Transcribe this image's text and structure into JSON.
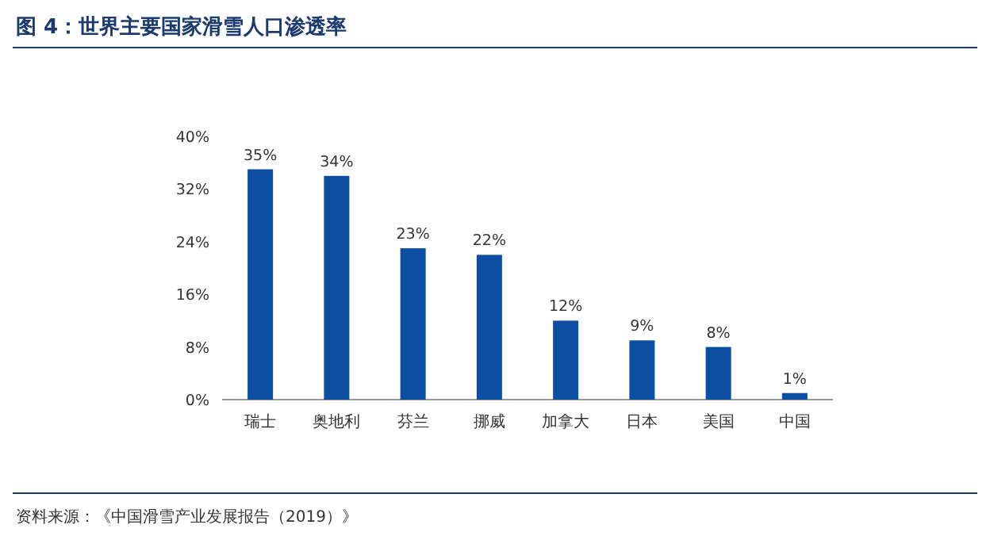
{
  "chart_data": {
    "type": "bar",
    "title": "图 4：世界主要国家滑雪人口渗透率",
    "categories": [
      "瑞士",
      "奥地利",
      "芬兰",
      "挪威",
      "加拿大",
      "日本",
      "美国",
      "中国"
    ],
    "values": [
      35,
      34,
      23,
      22,
      12,
      9,
      8,
      1
    ],
    "color": "#0b4ea2",
    "ylim": [
      0,
      40
    ],
    "yticks": [
      {
        "value": 0,
        "label": "0%"
      },
      {
        "value": 8,
        "label": "8%"
      },
      {
        "value": 16,
        "label": "16%"
      },
      {
        "value": 24,
        "label": "24%"
      },
      {
        "value": 32,
        "label": "32%"
      },
      {
        "value": 40,
        "label": "40%"
      }
    ],
    "value_labels": [
      "35%",
      "34%",
      "23%",
      "22%",
      "12%",
      "9%",
      "8%",
      "1%"
    ],
    "annotations": [
      "资料来源：《中国滑雪产业发展报告（2019）》"
    ]
  }
}
